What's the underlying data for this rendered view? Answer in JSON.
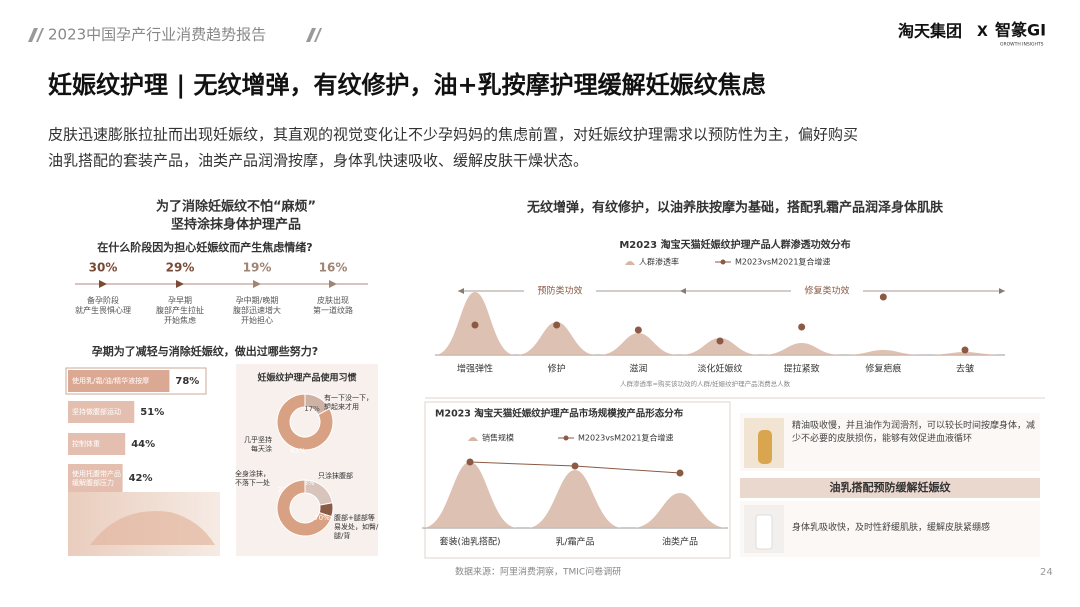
{
  "header": {
    "report_title": "2023中国孕产行业消费趋势报告",
    "brand": "淘天集团",
    "brand_x": "X",
    "brand_partner": "智篆GI",
    "brand_partner_sub": "GROWTH INSIGHTS"
  },
  "title": "妊娠纹护理 | 无纹增弹，有纹修护，油+乳按摩护理缓解妊娠纹焦虑",
  "description_lines": [
    "皮肤迅速膨胀拉扯而出现妊娠纹，其直观的视觉变化让不少孕妈妈的焦虑前置，对妊娠纹护理需求以预防性为主，偏好购买",
    "油乳搭配的套装产品，油类产品润滑按摩，身体乳快速吸收、缓解皮肤干燥状态。"
  ],
  "left": {
    "heading_lines": [
      "为了消除妊娠纹不怕“麻烦”",
      "坚持涂抹身体护理产品"
    ]
  },
  "right": {
    "heading": "无纹增弹，有纹修护，以油养肤按摩为基础，搭配乳霜产品润泽身体肌肤",
    "cards": {
      "oil_text": "精油吸收慢，并且油作为润滑剂，可以较长时间按摩身体，减少不必要的皮肤损伤，能够有效促进血液循环",
      "banner": "油乳搭配预防缓解妊娠纹",
      "lotion_text": "身体乳吸收快，及时性舒缓肌肤，缓解皮肤紧绷感"
    }
  },
  "footer": {
    "source": "数据来源：阿里消费洞察，TMIC问卷调研",
    "page": "24"
  },
  "chart_data": [
    {
      "type": "timeline",
      "title": "在什么阶段因为担心妊娠纹而产生焦虑情绪?",
      "categories": [
        "备孕阶段\n就产生畏惧心理",
        "孕早期\n腹部产生拉扯\n开始焦虑",
        "孕中期/晚期\n腹部迅速增大\n开始担心",
        "皮肤出现\n第一道纹路"
      ],
      "values": [
        30,
        29,
        19,
        16
      ],
      "value_labels": [
        "30%",
        "29%",
        "19%",
        "16%"
      ],
      "colors": [
        "#7a4a35",
        "#7a4a35",
        "#a08474",
        "#a08474"
      ]
    },
    {
      "type": "hbar",
      "title": "孕期为了减轻与消除妊娠纹，做出过哪些努力?",
      "categories": [
        "使用乳/霜/油/精华液按摩",
        "坚持做腹部运动",
        "控制体重",
        "使用托腹带产品\n缓解腹部压力"
      ],
      "values": [
        78,
        51,
        44,
        42
      ],
      "value_labels": [
        "78%",
        "51%",
        "44%",
        "42%"
      ],
      "color": "#dba893"
    },
    {
      "type": "donut",
      "title": "妊娠纹护理产品使用习惯",
      "categories": [
        "有一下没一下，\n想起来才用",
        "几乎坚持\n每天涂"
      ],
      "values": [
        17,
        83
      ],
      "value_labels": [
        "17%",
        "83%"
      ],
      "colors": [
        "#cdb2a5",
        "#d9a183"
      ]
    },
    {
      "type": "donut",
      "categories": [
        "全身涂抹，\n不落下一处",
        "只涂抹腹部",
        "腹部+腿部等\n易发处，如臀/\n腿/背"
      ],
      "values": [
        22,
        8,
        70
      ],
      "value_labels": [
        "22%",
        "8%",
        "70%"
      ],
      "colors": [
        "#d8c4ba",
        "#8a5a44",
        "#d9a183"
      ]
    },
    {
      "type": "peaks",
      "title": "M2023 淘宝天猫妊娠纹护理产品人群渗透功效分布",
      "categories": [
        "增强弹性",
        "修护",
        "滋润",
        "淡化妊娠纹",
        "提拉紧致",
        "修复疤痕",
        "去皱"
      ],
      "groups": [
        "预防类功效",
        "修复类功效"
      ],
      "series": [
        {
          "name": "人群渗透率",
          "color": "#d7b6a4",
          "values": [
            63,
            33,
            22,
            17,
            12,
            5,
            3
          ]
        },
        {
          "name": "M2023vsM2021复合增速",
          "color": "#8a5a44",
          "values": [
            30,
            30,
            25,
            14,
            28,
            58,
            5
          ]
        }
      ],
      "note": "人群渗透率=购买该功效的人群/妊娠纹护理产品消费总人数"
    },
    {
      "type": "peaks",
      "title": "M2023 淘宝天猫妊娠纹护理产品市场规模按产品形态分布",
      "categories": [
        "套装(油乳搭配)",
        "乳/霜产品",
        "油类产品"
      ],
      "series": [
        {
          "name": "销售规模",
          "color": "#d7b6a4",
          "values": [
            66,
            58,
            35
          ]
        },
        {
          "name": "M2023vsM2021复合增速",
          "color": "#8a5a44",
          "values": [
            66,
            62,
            55
          ],
          "line": true
        }
      ]
    }
  ]
}
